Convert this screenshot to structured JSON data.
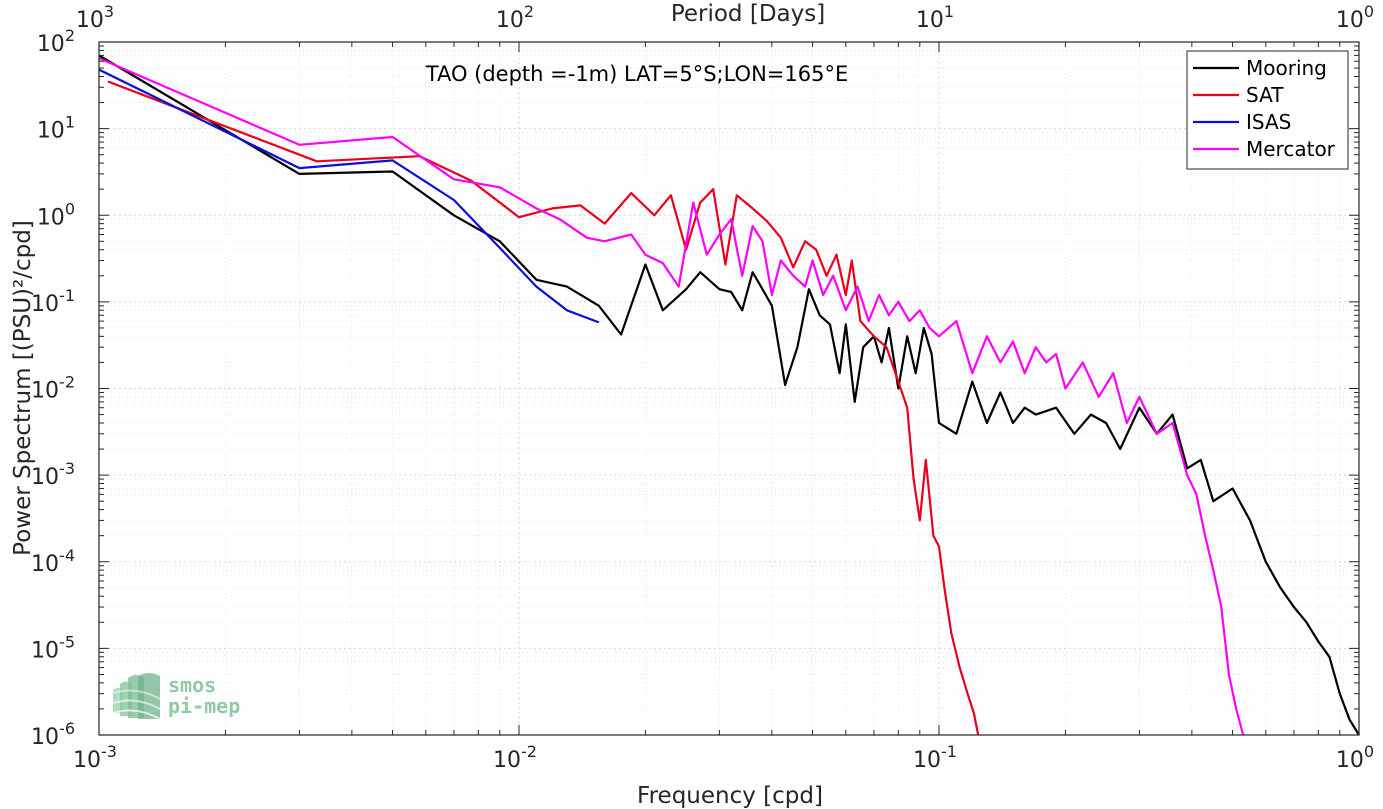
{
  "chart_data": {
    "type": "line",
    "title": "",
    "annotation": "TAO (depth =-1m) LAT=5°S;LON=165°E",
    "xlabel": "Frequency [cpd]",
    "ylabel": "Power Spectrum [(PSU)²/cpd]",
    "top_xlabel": "Period [Days]",
    "xscale": "log",
    "yscale": "log",
    "xlim": [
      0.001,
      1
    ],
    "ylim": [
      1e-06,
      100
    ],
    "grid": true,
    "legend_position": "top-right",
    "x_ticks": [
      {
        "base": "10",
        "exp": "-3",
        "value": 0.001
      },
      {
        "base": "10",
        "exp": "-2",
        "value": 0.01
      },
      {
        "base": "10",
        "exp": "-1",
        "value": 0.1
      },
      {
        "base": "10",
        "exp": "0",
        "value": 1
      }
    ],
    "top_x_ticks": [
      {
        "base": "10",
        "exp": "3",
        "value": 0.001
      },
      {
        "base": "10",
        "exp": "2",
        "value": 0.01
      },
      {
        "base": "10",
        "exp": "1",
        "value": 0.1
      },
      {
        "base": "10",
        "exp": "0",
        "value": 1
      }
    ],
    "y_ticks": [
      {
        "base": "10",
        "exp": "2",
        "value": 100
      },
      {
        "base": "10",
        "exp": "1",
        "value": 10
      },
      {
        "base": "10",
        "exp": "0",
        "value": 1
      },
      {
        "base": "10",
        "exp": "-1",
        "value": 0.1
      },
      {
        "base": "10",
        "exp": "-2",
        "value": 0.01
      },
      {
        "base": "10",
        "exp": "-3",
        "value": 0.001
      },
      {
        "base": "10",
        "exp": "-4",
        "value": 0.0001
      },
      {
        "base": "10",
        "exp": "-5",
        "value": 1e-05
      },
      {
        "base": "10",
        "exp": "-6",
        "value": 1e-06
      }
    ],
    "series": [
      {
        "name": "Mooring",
        "color": "#000000",
        "points": [
          [
            0.001,
            70
          ],
          [
            0.003,
            3.0
          ],
          [
            0.005,
            3.2
          ],
          [
            0.007,
            1.0
          ],
          [
            0.009,
            0.5
          ],
          [
            0.011,
            0.18
          ],
          [
            0.013,
            0.15
          ],
          [
            0.0155,
            0.09
          ],
          [
            0.0175,
            0.042
          ],
          [
            0.02,
            0.27
          ],
          [
            0.022,
            0.08
          ],
          [
            0.025,
            0.14
          ],
          [
            0.027,
            0.22
          ],
          [
            0.03,
            0.14
          ],
          [
            0.032,
            0.13
          ],
          [
            0.034,
            0.08
          ],
          [
            0.036,
            0.22
          ],
          [
            0.038,
            0.14
          ],
          [
            0.04,
            0.09
          ],
          [
            0.043,
            0.011
          ],
          [
            0.046,
            0.03
          ],
          [
            0.049,
            0.14
          ],
          [
            0.052,
            0.07
          ],
          [
            0.055,
            0.055
          ],
          [
            0.058,
            0.015
          ],
          [
            0.06,
            0.055
          ],
          [
            0.063,
            0.007
          ],
          [
            0.066,
            0.03
          ],
          [
            0.07,
            0.04
          ],
          [
            0.073,
            0.02
          ],
          [
            0.076,
            0.05
          ],
          [
            0.08,
            0.01
          ],
          [
            0.084,
            0.04
          ],
          [
            0.088,
            0.015
          ],
          [
            0.092,
            0.05
          ],
          [
            0.096,
            0.025
          ],
          [
            0.1,
            0.004
          ],
          [
            0.11,
            0.003
          ],
          [
            0.12,
            0.012
          ],
          [
            0.13,
            0.004
          ],
          [
            0.14,
            0.009
          ],
          [
            0.15,
            0.004
          ],
          [
            0.16,
            0.006
          ],
          [
            0.17,
            0.005
          ],
          [
            0.19,
            0.006
          ],
          [
            0.21,
            0.003
          ],
          [
            0.23,
            0.005
          ],
          [
            0.25,
            0.004
          ],
          [
            0.27,
            0.002
          ],
          [
            0.3,
            0.006
          ],
          [
            0.33,
            0.003
          ],
          [
            0.36,
            0.005
          ],
          [
            0.39,
            0.0012
          ],
          [
            0.42,
            0.0015
          ],
          [
            0.45,
            0.0005
          ],
          [
            0.5,
            0.0007
          ],
          [
            0.55,
            0.0003
          ],
          [
            0.6,
            0.0001
          ],
          [
            0.65,
            5e-05
          ],
          [
            0.7,
            3e-05
          ],
          [
            0.75,
            2e-05
          ],
          [
            0.8,
            1.2e-05
          ],
          [
            0.85,
            8e-06
          ],
          [
            0.9,
            3e-06
          ],
          [
            0.95,
            1.5e-06
          ],
          [
            1.0,
            1e-06
          ]
        ]
      },
      {
        "name": "SAT",
        "color": "#e8001c",
        "points": [
          [
            0.00105,
            35
          ],
          [
            0.0033,
            4.2
          ],
          [
            0.0058,
            4.8
          ],
          [
            0.0077,
            2.5
          ],
          [
            0.01,
            0.95
          ],
          [
            0.012,
            1.2
          ],
          [
            0.014,
            1.3
          ],
          [
            0.016,
            0.8
          ],
          [
            0.0185,
            1.8
          ],
          [
            0.021,
            1.0
          ],
          [
            0.023,
            1.7
          ],
          [
            0.025,
            0.4
          ],
          [
            0.027,
            1.4
          ],
          [
            0.029,
            2.0
          ],
          [
            0.031,
            0.27
          ],
          [
            0.033,
            1.7
          ],
          [
            0.036,
            1.2
          ],
          [
            0.039,
            0.85
          ],
          [
            0.042,
            0.55
          ],
          [
            0.045,
            0.25
          ],
          [
            0.048,
            0.5
          ],
          [
            0.051,
            0.4
          ],
          [
            0.054,
            0.2
          ],
          [
            0.057,
            0.35
          ],
          [
            0.06,
            0.12
          ],
          [
            0.062,
            0.3
          ],
          [
            0.065,
            0.06
          ],
          [
            0.07,
            0.04
          ],
          [
            0.075,
            0.03
          ],
          [
            0.08,
            0.012
          ],
          [
            0.084,
            0.006
          ],
          [
            0.087,
            0.0009
          ],
          [
            0.09,
            0.0003
          ],
          [
            0.093,
            0.0015
          ],
          [
            0.097,
            0.0002
          ],
          [
            0.1,
            0.00015
          ],
          [
            0.103,
            5e-05
          ],
          [
            0.107,
            1.5e-05
          ],
          [
            0.112,
            6e-06
          ],
          [
            0.117,
            3e-06
          ],
          [
            0.121,
            1.8e-06
          ],
          [
            0.124,
            1e-06
          ]
        ]
      },
      {
        "name": "ISAS",
        "color": "#0a10dc",
        "points": [
          [
            0.001,
            48
          ],
          [
            0.003,
            3.5
          ],
          [
            0.005,
            4.3
          ],
          [
            0.007,
            1.5
          ],
          [
            0.009,
            0.42
          ],
          [
            0.011,
            0.15
          ],
          [
            0.013,
            0.08
          ],
          [
            0.0155,
            0.058
          ]
        ]
      },
      {
        "name": "Mercator",
        "color": "#ff00ff",
        "points": [
          [
            0.001,
            65
          ],
          [
            0.003,
            6.5
          ],
          [
            0.005,
            8.0
          ],
          [
            0.007,
            2.6
          ],
          [
            0.009,
            2.1
          ],
          [
            0.011,
            1.2
          ],
          [
            0.0125,
            0.9
          ],
          [
            0.0145,
            0.55
          ],
          [
            0.016,
            0.5
          ],
          [
            0.0185,
            0.6
          ],
          [
            0.02,
            0.35
          ],
          [
            0.022,
            0.28
          ],
          [
            0.024,
            0.15
          ],
          [
            0.026,
            1.4
          ],
          [
            0.028,
            0.35
          ],
          [
            0.03,
            0.6
          ],
          [
            0.032,
            0.9
          ],
          [
            0.034,
            0.2
          ],
          [
            0.036,
            0.75
          ],
          [
            0.038,
            0.5
          ],
          [
            0.04,
            0.12
          ],
          [
            0.042,
            0.3
          ],
          [
            0.045,
            0.2
          ],
          [
            0.048,
            0.15
          ],
          [
            0.05,
            0.3
          ],
          [
            0.053,
            0.12
          ],
          [
            0.056,
            0.2
          ],
          [
            0.06,
            0.08
          ],
          [
            0.064,
            0.15
          ],
          [
            0.068,
            0.06
          ],
          [
            0.072,
            0.12
          ],
          [
            0.076,
            0.07
          ],
          [
            0.08,
            0.1
          ],
          [
            0.085,
            0.06
          ],
          [
            0.09,
            0.08
          ],
          [
            0.095,
            0.05
          ],
          [
            0.1,
            0.04
          ],
          [
            0.11,
            0.06
          ],
          [
            0.12,
            0.015
          ],
          [
            0.13,
            0.04
          ],
          [
            0.14,
            0.02
          ],
          [
            0.15,
            0.035
          ],
          [
            0.16,
            0.015
          ],
          [
            0.17,
            0.03
          ],
          [
            0.18,
            0.02
          ],
          [
            0.19,
            0.025
          ],
          [
            0.2,
            0.01
          ],
          [
            0.22,
            0.02
          ],
          [
            0.24,
            0.008
          ],
          [
            0.26,
            0.015
          ],
          [
            0.28,
            0.004
          ],
          [
            0.3,
            0.008
          ],
          [
            0.33,
            0.003
          ],
          [
            0.36,
            0.004
          ],
          [
            0.39,
            0.001
          ],
          [
            0.41,
            0.0006
          ],
          [
            0.43,
            0.0002
          ],
          [
            0.45,
            8e-05
          ],
          [
            0.47,
            3e-05
          ],
          [
            0.49,
            5e-06
          ],
          [
            0.51,
            2e-06
          ],
          [
            0.53,
            1e-06
          ]
        ]
      }
    ]
  },
  "logo": {
    "line1": "smos",
    "line2": "pi-mep",
    "color": "#8fcaa5"
  }
}
